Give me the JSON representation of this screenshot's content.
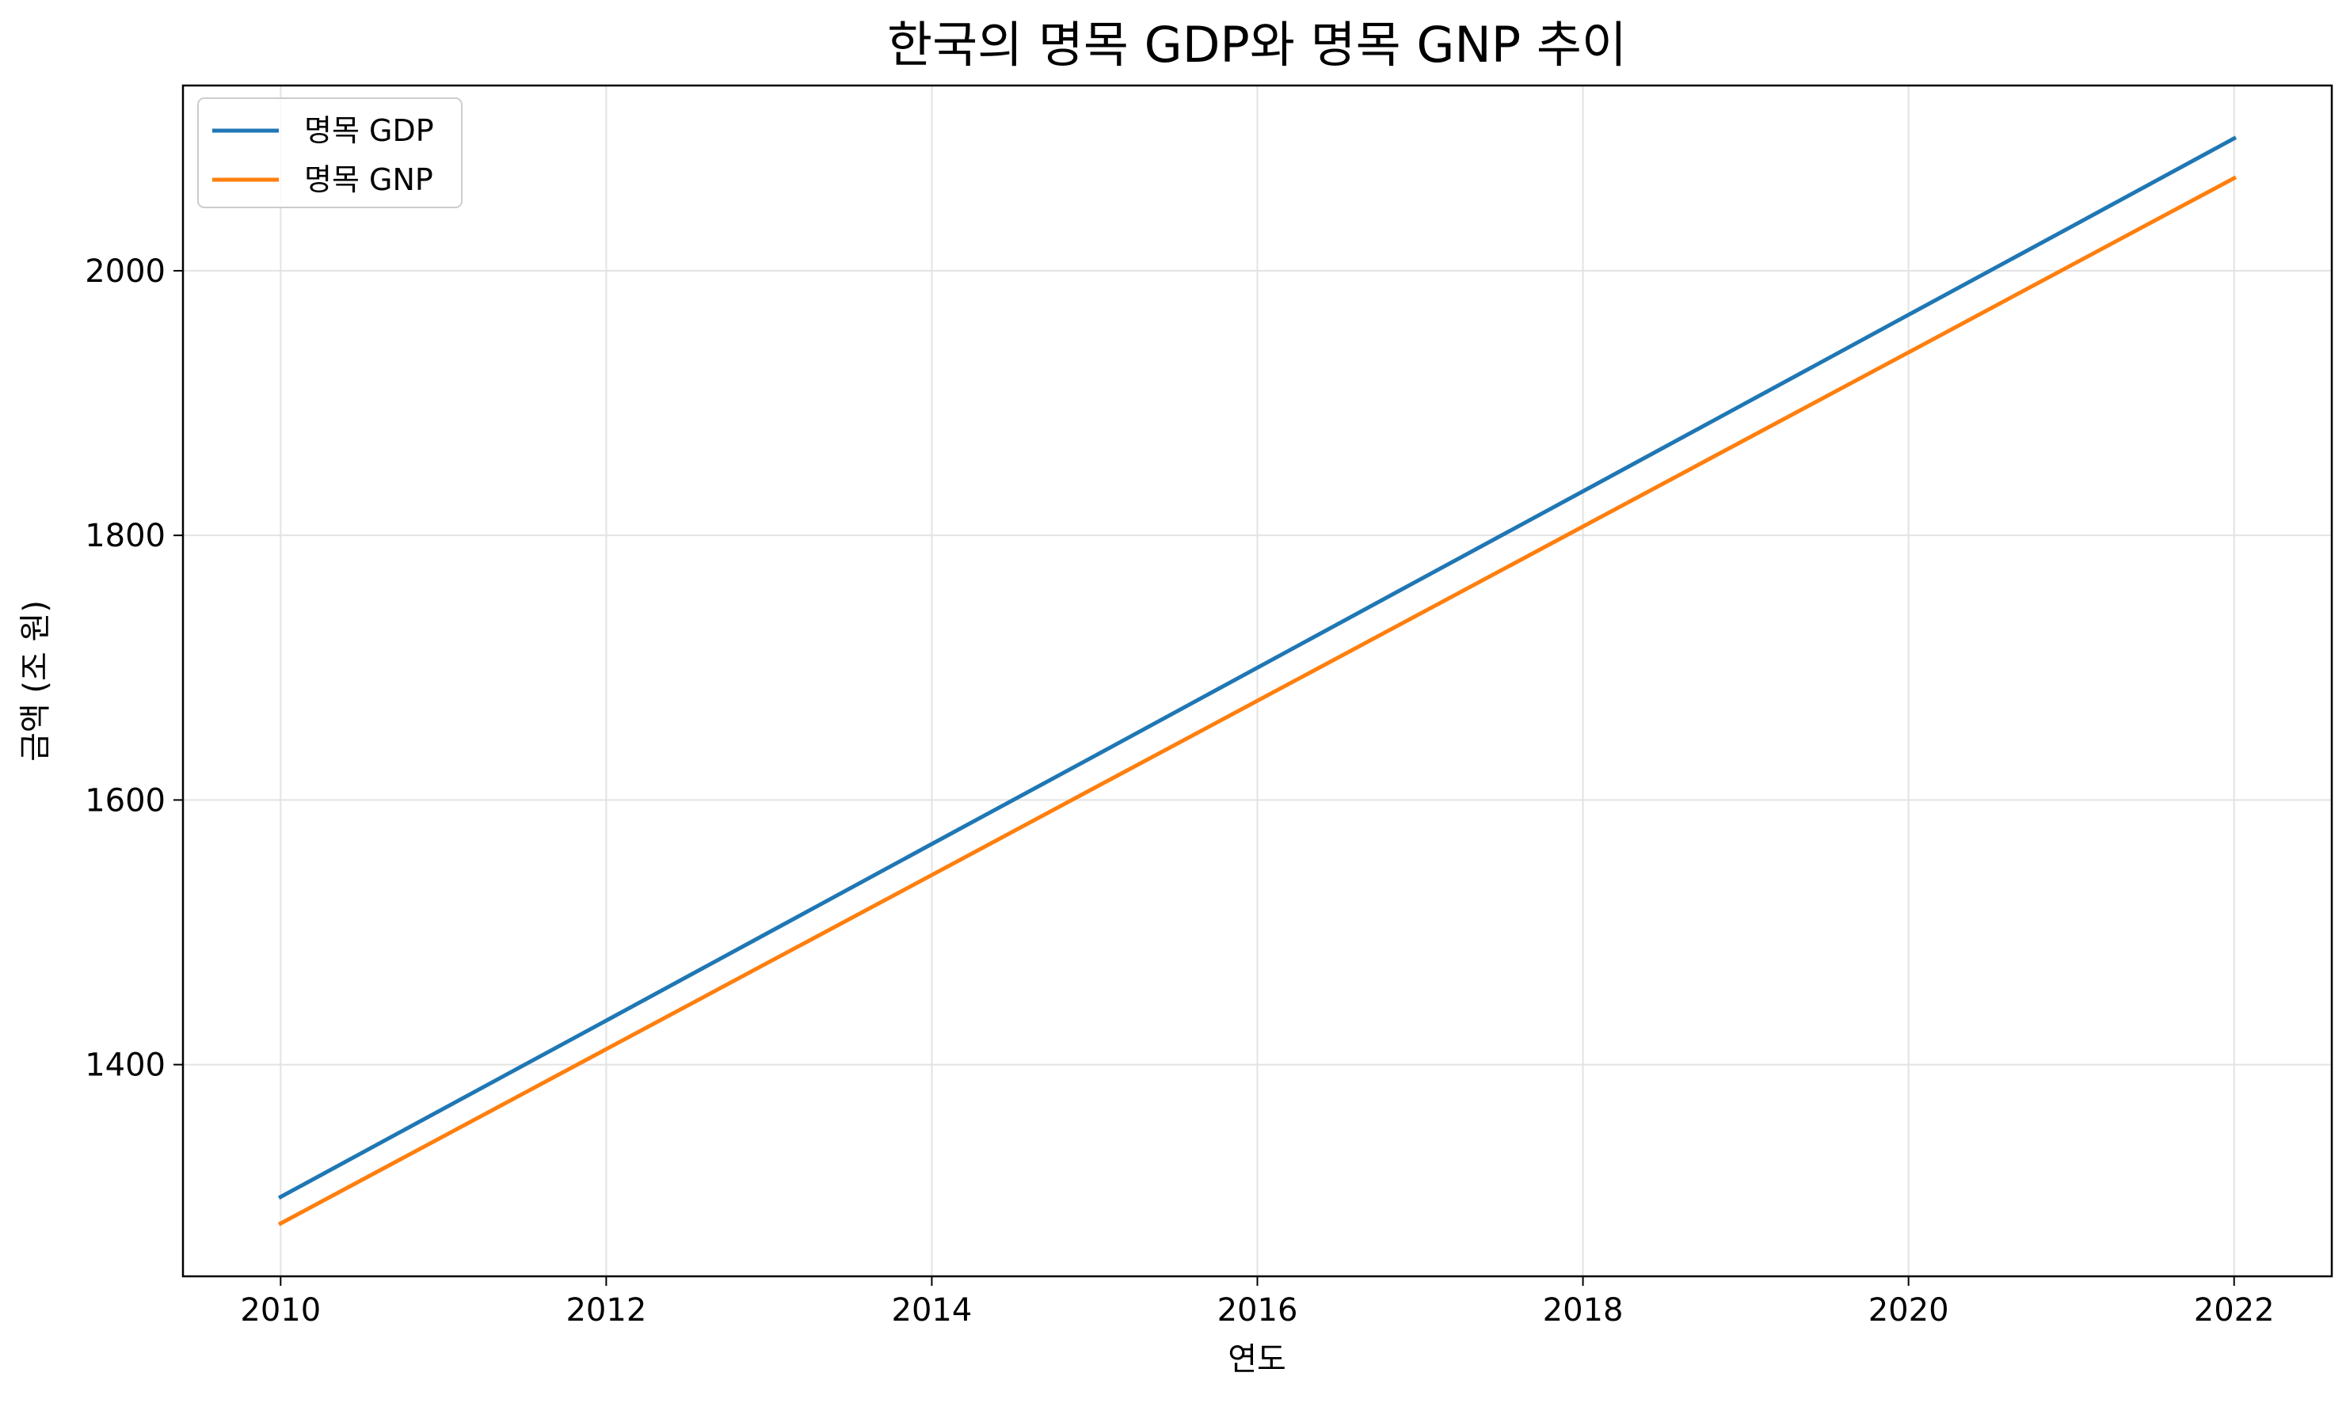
{
  "chart_data": {
    "type": "line",
    "title": "한국의 명목 GDP와 명목 GNP 추이",
    "xlabel": "연도",
    "ylabel": "금액 (조 원)",
    "x": [
      2010,
      2011,
      2012,
      2013,
      2014,
      2015,
      2016,
      2017,
      2018,
      2019,
      2020,
      2021,
      2022
    ],
    "series": [
      {
        "name": "명목 GDP",
        "color": "#1f77b4",
        "values": [
          1300,
          1366.7,
          1433.3,
          1500,
          1566.7,
          1633.3,
          1700,
          1766.7,
          1833.3,
          1900,
          1966.7,
          2033.3,
          2100
        ]
      },
      {
        "name": "명목 GNP",
        "color": "#ff7f0e",
        "values": [
          1280,
          1345.8,
          1411.7,
          1477.5,
          1543.3,
          1609.2,
          1675,
          1740.8,
          1806.7,
          1872.5,
          1938.3,
          2004.2,
          2070
        ]
      }
    ],
    "xlim": [
      2009.4,
      2022.6
    ],
    "ylim": [
      1240,
      2140
    ],
    "xticks": [
      "2010",
      "2012",
      "2014",
      "2016",
      "2018",
      "2020",
      "2022"
    ],
    "yticks": [
      "1400",
      "1600",
      "1800",
      "2000"
    ],
    "grid": true,
    "legend_position": "upper-left"
  }
}
